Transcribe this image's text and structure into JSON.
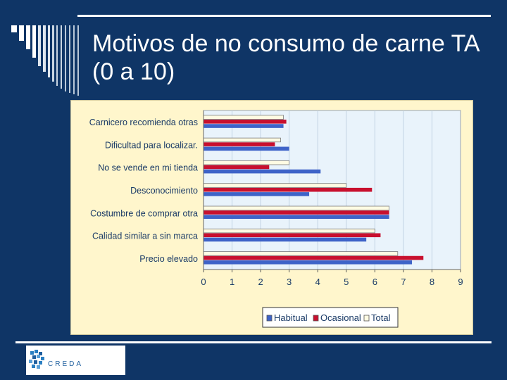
{
  "slide": {
    "title": "Motivos de no consumo de carne TA (0 a 10)",
    "logo_text": "CREDA"
  },
  "colors": {
    "background": "#0f3566",
    "plot_area": "#e9f3fb",
    "chart_frame": "#fff6cc",
    "habitual": "#3e63c8",
    "ocasional": "#c8102e",
    "total": "#fffbe3"
  },
  "chart_data": {
    "type": "bar",
    "orientation": "horizontal",
    "categories": [
      "Carnicero recomienda otras",
      "Dificultad para localizar.",
      "No se vende en mi tienda",
      "Desconocimiento",
      "Costumbre de comprar otra",
      "Calidad similar a sin marca",
      "Precio elevado"
    ],
    "series": [
      {
        "name": "Habitual",
        "color": "#3e63c8",
        "values": [
          2.8,
          3.0,
          4.1,
          3.7,
          6.5,
          5.7,
          7.3
        ]
      },
      {
        "name": "Ocasional",
        "color": "#c8102e",
        "values": [
          2.9,
          2.5,
          2.3,
          5.9,
          6.5,
          6.2,
          7.7
        ]
      },
      {
        "name": "Total",
        "color": "#fffbe3",
        "values": [
          2.8,
          2.7,
          3.0,
          5.0,
          6.5,
          6.0,
          6.8
        ]
      }
    ],
    "xlim": [
      0,
      9
    ],
    "xticks": [
      "0",
      "1",
      "2",
      "3",
      "4",
      "5",
      "6",
      "7",
      "8",
      "9"
    ],
    "grid": true,
    "legend_position": "bottom",
    "title": "",
    "xlabel": "",
    "ylabel": ""
  }
}
